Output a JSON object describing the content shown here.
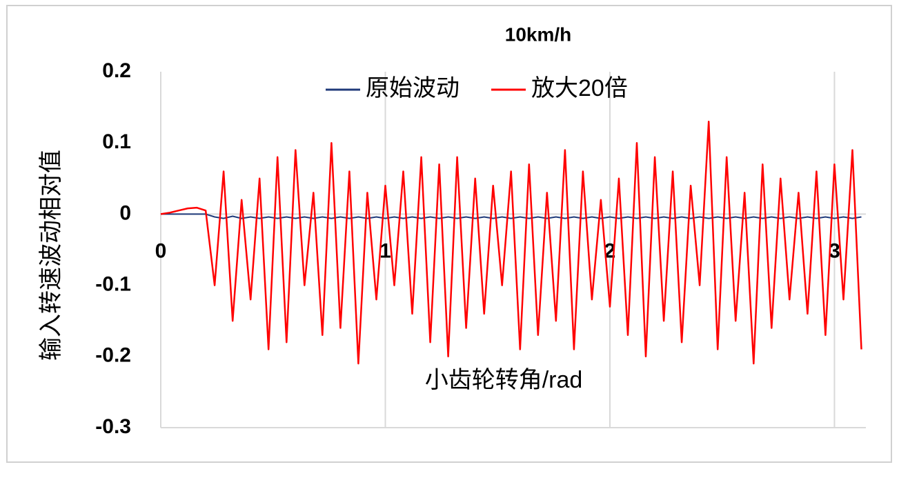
{
  "chart_data": {
    "type": "line",
    "title": "10km/h",
    "xlabel": "小齿轮转角/rad",
    "ylabel": "输入转速波动相对值",
    "x": [
      0,
      0.04,
      0.08,
      0.12,
      0.16,
      0.2,
      0.24,
      0.28,
      0.32,
      0.36,
      0.4,
      0.44,
      0.48,
      0.52,
      0.56,
      0.6,
      0.64,
      0.68,
      0.72,
      0.76,
      0.8,
      0.84,
      0.88,
      0.92,
      0.96,
      1.0,
      1.04,
      1.08,
      1.12,
      1.16,
      1.2,
      1.24,
      1.28,
      1.32,
      1.36,
      1.4,
      1.44,
      1.48,
      1.52,
      1.56,
      1.6,
      1.64,
      1.68,
      1.72,
      1.76,
      1.8,
      1.84,
      1.88,
      1.92,
      1.96,
      2.0,
      2.04,
      2.08,
      2.12,
      2.16,
      2.2,
      2.24,
      2.28,
      2.32,
      2.36,
      2.4,
      2.44,
      2.48,
      2.52,
      2.56,
      2.6,
      2.64,
      2.68,
      2.72,
      2.76,
      2.8,
      2.84,
      2.88,
      2.92,
      2.96,
      3.0,
      3.04,
      3.08,
      3.12
    ],
    "series": [
      {
        "name": "原始波动",
        "color": "#1f3a7a",
        "values": [
          0,
          0,
          0,
          0,
          0,
          0,
          -0.004,
          -0.006,
          -0.003,
          -0.006,
          -0.004,
          -0.006,
          -0.004,
          -0.006,
          -0.004,
          -0.006,
          -0.004,
          -0.006,
          -0.004,
          -0.006,
          -0.004,
          -0.006,
          -0.004,
          -0.006,
          -0.004,
          -0.006,
          -0.004,
          -0.006,
          -0.004,
          -0.006,
          -0.004,
          -0.006,
          -0.004,
          -0.006,
          -0.004,
          -0.006,
          -0.004,
          -0.006,
          -0.004,
          -0.006,
          -0.004,
          -0.006,
          -0.004,
          -0.006,
          -0.004,
          -0.006,
          -0.004,
          -0.006,
          -0.004,
          -0.006,
          -0.004,
          -0.006,
          -0.004,
          -0.006,
          -0.004,
          -0.006,
          -0.004,
          -0.006,
          -0.004,
          -0.006,
          -0.004,
          -0.006,
          -0.004,
          -0.006,
          -0.004,
          -0.006,
          -0.004,
          -0.006,
          -0.004,
          -0.006,
          -0.004,
          -0.006,
          -0.004,
          -0.006,
          -0.004,
          -0.006,
          -0.004,
          -0.006,
          -0.004
        ]
      },
      {
        "name": "放大20倍",
        "color": "#ff0000",
        "values": [
          0,
          0.002,
          0.005,
          0.008,
          0.009,
          0.005,
          -0.1,
          0.06,
          -0.15,
          0.02,
          -0.12,
          0.05,
          -0.19,
          0.08,
          -0.18,
          0.09,
          -0.1,
          0.03,
          -0.17,
          0.1,
          -0.16,
          0.06,
          -0.21,
          0.03,
          -0.12,
          0.04,
          -0.1,
          0.06,
          -0.14,
          0.08,
          -0.18,
          0.07,
          -0.2,
          0.08,
          -0.16,
          0.05,
          -0.14,
          0.04,
          -0.1,
          0.06,
          -0.19,
          0.07,
          -0.17,
          0.03,
          -0.15,
          0.09,
          -0.19,
          0.06,
          -0.12,
          0.02,
          -0.13,
          0.05,
          -0.17,
          0.1,
          -0.2,
          0.08,
          -0.15,
          0.06,
          -0.18,
          0.04,
          -0.1,
          0.13,
          -0.19,
          0.08,
          -0.15,
          0.03,
          -0.21,
          0.07,
          -0.16,
          0.05,
          -0.12,
          0.03,
          -0.14,
          0.06,
          -0.17,
          0.07,
          -0.12,
          0.09,
          -0.19
        ]
      }
    ],
    "xlim": [
      0,
      3.14
    ],
    "xticks": [
      0,
      1,
      2,
      3
    ],
    "ylim": [
      -0.3,
      0.2
    ],
    "yticks": [
      -0.3,
      -0.2,
      -0.1,
      0,
      0.1,
      0.2
    ],
    "grid": true,
    "legend": "top"
  }
}
